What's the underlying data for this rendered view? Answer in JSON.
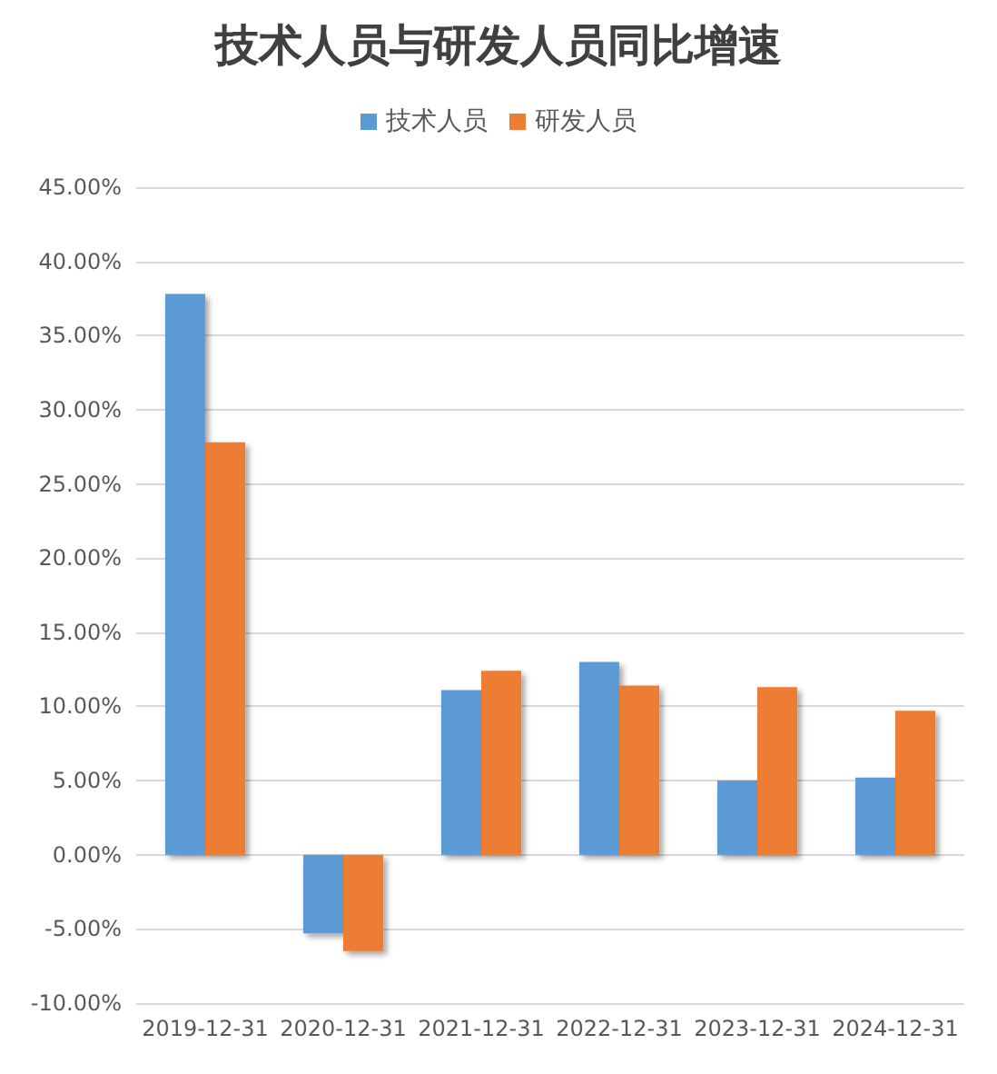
{
  "chart_data": {
    "type": "bar",
    "title": "技术人员与研发人员同比增速",
    "categories": [
      "2019-12-31",
      "2020-12-31",
      "2021-12-31",
      "2022-12-31",
      "2023-12-31",
      "2024-12-31"
    ],
    "series": [
      {
        "name": "技术人员",
        "color": "#5b9bd5",
        "values": [
          37.8,
          -5.3,
          11.1,
          13.0,
          5.0,
          5.2
        ]
      },
      {
        "name": "研发人员",
        "color": "#ed7d31",
        "values": [
          27.8,
          -6.5,
          12.4,
          11.4,
          11.3,
          9.7
        ]
      }
    ],
    "ylim": [
      -10,
      45
    ],
    "yticks": [
      {
        "value": -10,
        "label": "-10.00%"
      },
      {
        "value": -5,
        "label": "-5.00%"
      },
      {
        "value": 0,
        "label": "0.00%"
      },
      {
        "value": 5,
        "label": "5.00%"
      },
      {
        "value": 10,
        "label": "10.00%"
      },
      {
        "value": 15,
        "label": "15.00%"
      },
      {
        "value": 20,
        "label": "20.00%"
      },
      {
        "value": 25,
        "label": "25.00%"
      },
      {
        "value": 30,
        "label": "30.00%"
      },
      {
        "value": 35,
        "label": "35.00%"
      },
      {
        "value": 40,
        "label": "40.00%"
      },
      {
        "value": 45,
        "label": "45.00%"
      }
    ],
    "grid": "y",
    "legend": "top"
  }
}
